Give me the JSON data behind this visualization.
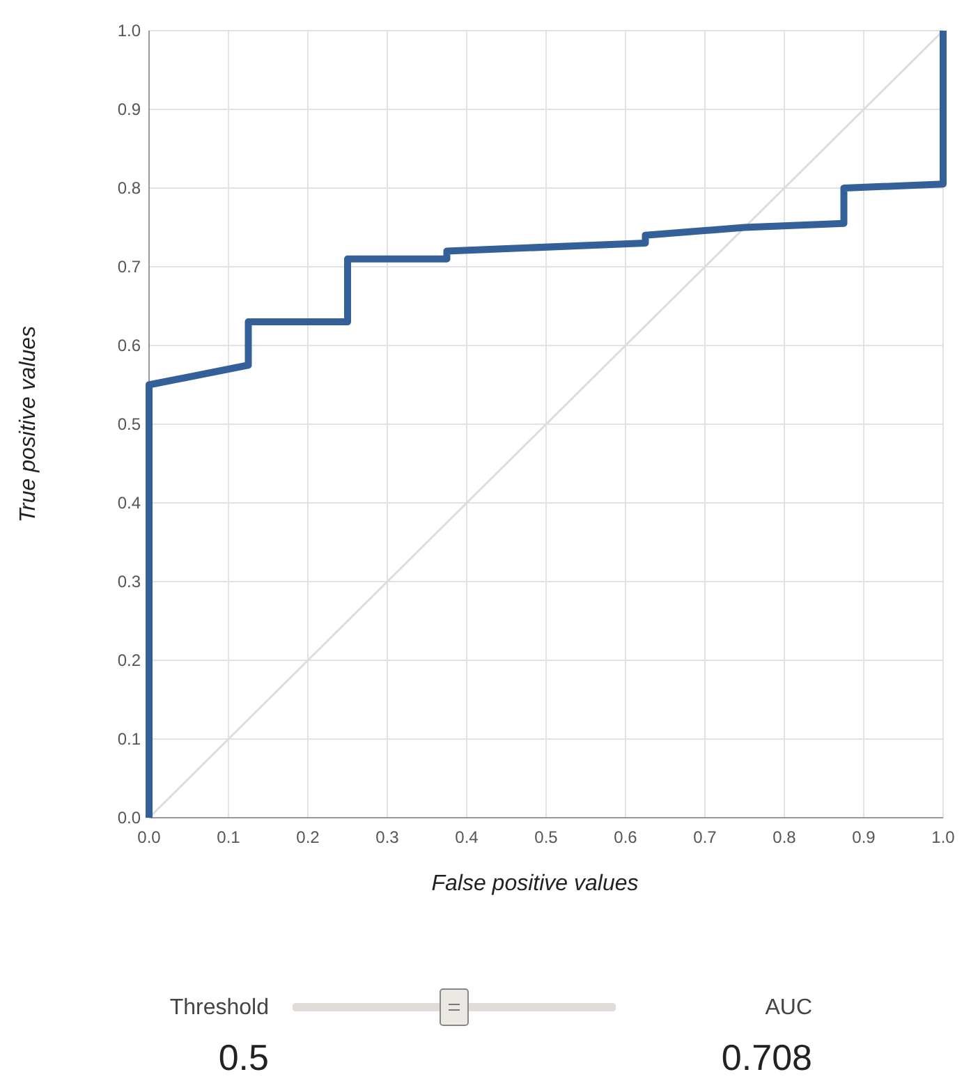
{
  "chart_data": {
    "type": "line",
    "xlabel": "False positive values",
    "ylabel": "True positive values",
    "xlim": [
      0,
      1
    ],
    "ylim": [
      0,
      1
    ],
    "xticks": [
      {
        "value": 0,
        "label": "0.0"
      },
      {
        "value": 0.1,
        "label": "0.1"
      },
      {
        "value": 0.2,
        "label": "0.2"
      },
      {
        "value": 0.3,
        "label": "0.3"
      },
      {
        "value": 0.4,
        "label": "0.4"
      },
      {
        "value": 0.5,
        "label": "0.5"
      },
      {
        "value": 0.6,
        "label": "0.6"
      },
      {
        "value": 0.7,
        "label": "0.7"
      },
      {
        "value": 0.8,
        "label": "0.8"
      },
      {
        "value": 0.9,
        "label": "0.9"
      },
      {
        "value": 1,
        "label": "1.0"
      }
    ],
    "yticks": [
      {
        "value": 0,
        "label": "0.0"
      },
      {
        "value": 0.1,
        "label": "0.1"
      },
      {
        "value": 0.2,
        "label": "0.2"
      },
      {
        "value": 0.3,
        "label": "0.3"
      },
      {
        "value": 0.4,
        "label": "0.4"
      },
      {
        "value": 0.5,
        "label": "0.5"
      },
      {
        "value": 0.6,
        "label": "0.6"
      },
      {
        "value": 0.7,
        "label": "0.7"
      },
      {
        "value": 0.8,
        "label": "0.8"
      },
      {
        "value": 0.9,
        "label": "0.9"
      },
      {
        "value": 1,
        "label": "1.0"
      }
    ],
    "grid": true,
    "marker": "none",
    "series": [
      {
        "color": "#dddddd",
        "x": [
          0,
          1
        ],
        "values": [
          0,
          1
        ]
      },
      {
        "color": "#34609a",
        "x": [
          0,
          0,
          0.125,
          0.125,
          0.25,
          0.25,
          0.375,
          0.375,
          0.625,
          0.625,
          0.75,
          0.875,
          0.875,
          1,
          1
        ],
        "values": [
          0,
          0.55,
          0.575,
          0.63,
          0.63,
          0.71,
          0.71,
          0.72,
          0.73,
          0.74,
          0.75,
          0.755,
          0.8,
          0.805,
          1
        ]
      }
    ],
    "annotations": [
      "Threshold",
      "0.5",
      "AUC",
      "0.708"
    ]
  }
}
